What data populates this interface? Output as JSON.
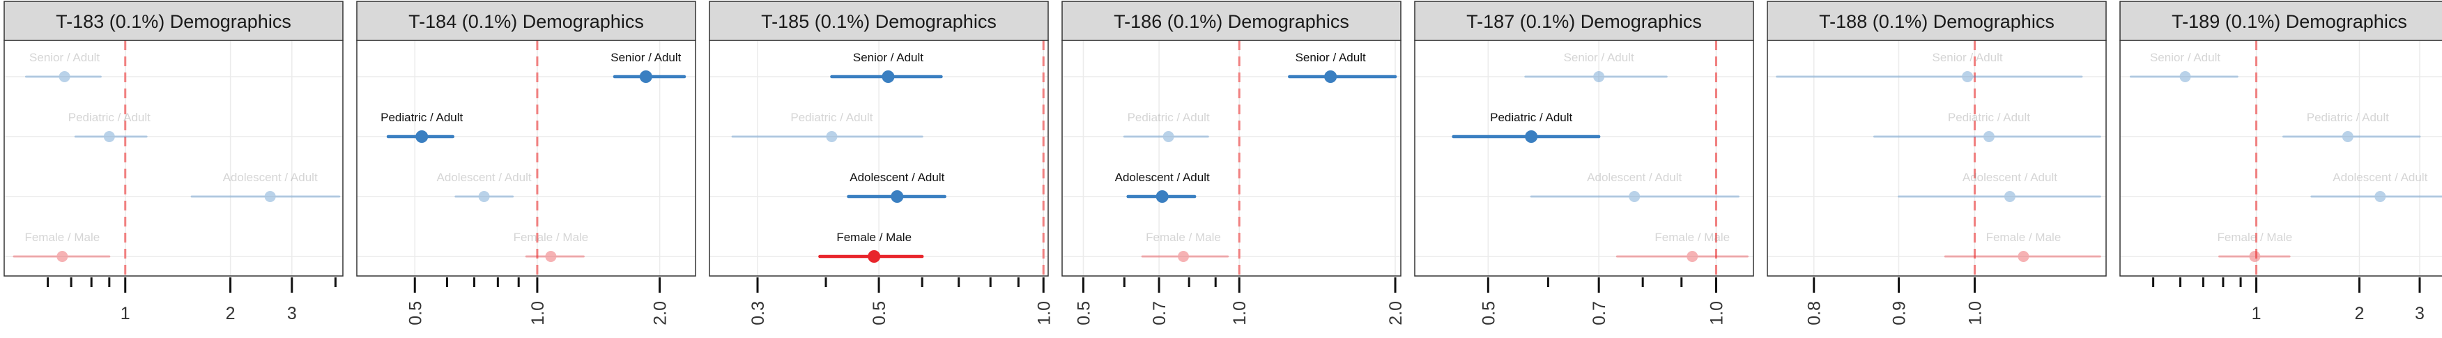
{
  "chart_data": [
    {
      "type": "forest",
      "title": "T-183 (0.1%) Demographics",
      "xscale": "log",
      "xlim": [
        0.45,
        4.2
      ],
      "tick_labels": [
        {
          "v": 1,
          "t": "1"
        },
        {
          "v": 2,
          "t": "2"
        },
        {
          "v": 3,
          "t": "3"
        }
      ],
      "minor_ticks": [
        0.6,
        0.7,
        0.8,
        0.9,
        4
      ],
      "label_rotation": 0,
      "ref": 1,
      "rows": [
        {
          "label": "Senior / Adult",
          "est": 0.67,
          "lo": 0.52,
          "hi": 0.85,
          "sig": false,
          "color": "#3a7fc1"
        },
        {
          "label": "Pediatric / Adult",
          "est": 0.9,
          "lo": 0.72,
          "hi": 1.15,
          "sig": false,
          "color": "#3a7fc1"
        },
        {
          "label": "Adolescent / Adult",
          "est": 2.6,
          "lo": 1.55,
          "hi": 4.1,
          "sig": false,
          "color": "#3a7fc1"
        },
        {
          "label": "Female / Male",
          "est": 0.66,
          "lo": 0.48,
          "hi": 0.9,
          "sig": false,
          "color": "#e8252b"
        }
      ]
    },
    {
      "type": "forest",
      "title": "T-184 (0.1%) Demographics",
      "xscale": "log",
      "xlim": [
        0.36,
        2.45
      ],
      "tick_labels": [
        {
          "v": 0.5,
          "t": "0.5"
        },
        {
          "v": 1,
          "t": "1.0"
        },
        {
          "v": 2,
          "t": "2.0"
        }
      ],
      "minor_ticks": [
        0.6,
        0.7,
        0.8,
        0.9
      ],
      "label_rotation": -90,
      "ref": 1,
      "rows": [
        {
          "label": "Senior / Adult",
          "est": 1.85,
          "lo": 1.55,
          "hi": 2.3,
          "sig": true,
          "color": "#3a7fc1"
        },
        {
          "label": "Pediatric / Adult",
          "est": 0.52,
          "lo": 0.43,
          "hi": 0.62,
          "sig": true,
          "color": "#3a7fc1"
        },
        {
          "label": "Adolescent / Adult",
          "est": 0.74,
          "lo": 0.63,
          "hi": 0.87,
          "sig": false,
          "color": "#3a7fc1"
        },
        {
          "label": "Female / Male",
          "est": 1.08,
          "lo": 0.94,
          "hi": 1.3,
          "sig": false,
          "color": "#e8252b"
        }
      ]
    },
    {
      "type": "forest",
      "title": "T-185 (0.1%) Demographics",
      "xscale": "log",
      "xlim": [
        0.245,
        1.02
      ],
      "tick_labels": [
        {
          "v": 0.3,
          "t": "0.3"
        },
        {
          "v": 0.5,
          "t": "0.5"
        },
        {
          "v": 1,
          "t": "1.0"
        }
      ],
      "minor_ticks": [
        0.4,
        0.6,
        0.7,
        0.8,
        0.9
      ],
      "label_rotation": -90,
      "ref": 1,
      "rows": [
        {
          "label": "Senior / Adult",
          "est": 0.52,
          "lo": 0.41,
          "hi": 0.65,
          "sig": true,
          "color": "#3a7fc1"
        },
        {
          "label": "Pediatric / Adult",
          "est": 0.41,
          "lo": 0.27,
          "hi": 0.6,
          "sig": false,
          "color": "#3a7fc1"
        },
        {
          "label": "Adolescent / Adult",
          "est": 0.54,
          "lo": 0.44,
          "hi": 0.66,
          "sig": true,
          "color": "#3a7fc1"
        },
        {
          "label": "Female / Male",
          "est": 0.49,
          "lo": 0.39,
          "hi": 0.6,
          "sig": true,
          "color": "#e8252b"
        }
      ]
    },
    {
      "type": "forest",
      "title": "T-186 (0.1%) Demographics",
      "xscale": "log",
      "xlim": [
        0.455,
        2.05
      ],
      "tick_labels": [
        {
          "v": 0.5,
          "t": "0.5"
        },
        {
          "v": 0.7,
          "t": "0.7"
        },
        {
          "v": 1,
          "t": "1.0"
        },
        {
          "v": 2,
          "t": "2.0"
        }
      ],
      "minor_ticks": [
        0.6,
        0.8,
        0.9
      ],
      "label_rotation": -90,
      "ref": 1,
      "rows": [
        {
          "label": "Senior / Adult",
          "est": 1.5,
          "lo": 1.25,
          "hi": 2.0,
          "sig": true,
          "color": "#3a7fc1"
        },
        {
          "label": "Pediatric / Adult",
          "est": 0.73,
          "lo": 0.6,
          "hi": 0.87,
          "sig": false,
          "color": "#3a7fc1"
        },
        {
          "label": "Adolescent / Adult",
          "est": 0.71,
          "lo": 0.61,
          "hi": 0.82,
          "sig": true,
          "color": "#3a7fc1"
        },
        {
          "label": "Female / Male",
          "est": 0.78,
          "lo": 0.65,
          "hi": 0.95,
          "sig": false,
          "color": "#e8252b"
        }
      ]
    },
    {
      "type": "forest",
      "title": "T-187 (0.1%) Demographics",
      "xscale": "log",
      "xlim": [
        0.4,
        1.12
      ],
      "tick_labels": [
        {
          "v": 0.5,
          "t": "0.5"
        },
        {
          "v": 0.7,
          "t": "0.7"
        },
        {
          "v": 1,
          "t": "1.0"
        }
      ],
      "minor_ticks": [
        0.6,
        0.8,
        0.9
      ],
      "label_rotation": -90,
      "ref": 1,
      "rows": [
        {
          "label": "Senior / Adult",
          "est": 0.7,
          "lo": 0.56,
          "hi": 0.86,
          "sig": false,
          "color": "#3a7fc1"
        },
        {
          "label": "Pediatric / Adult",
          "est": 0.57,
          "lo": 0.45,
          "hi": 0.7,
          "sig": true,
          "color": "#3a7fc1"
        },
        {
          "label": "Adolescent / Adult",
          "est": 0.78,
          "lo": 0.57,
          "hi": 1.07,
          "sig": false,
          "color": "#3a7fc1"
        },
        {
          "label": "Female / Male",
          "est": 0.93,
          "lo": 0.74,
          "hi": 1.1,
          "sig": false,
          "color": "#e8252b"
        }
      ]
    },
    {
      "type": "forest",
      "title": "T-188 (0.1%) Demographics",
      "xscale": "log",
      "xlim": [
        0.75,
        1.2
      ],
      "tick_labels": [
        {
          "v": 0.8,
          "t": "0.8"
        },
        {
          "v": 0.9,
          "t": "0.9"
        },
        {
          "v": 1,
          "t": "1.0"
        }
      ],
      "minor_ticks": [],
      "label_rotation": -90,
      "ref": 1,
      "rows": [
        {
          "label": "Senior / Adult",
          "est": 0.99,
          "lo": 0.76,
          "hi": 1.16,
          "sig": false,
          "color": "#3a7fc1"
        },
        {
          "label": "Pediatric / Adult",
          "est": 1.02,
          "lo": 0.87,
          "hi": 1.19,
          "sig": false,
          "color": "#3a7fc1"
        },
        {
          "label": "Adolescent / Adult",
          "est": 1.05,
          "lo": 0.9,
          "hi": 1.19,
          "sig": false,
          "color": "#3a7fc1"
        },
        {
          "label": "Female / Male",
          "est": 1.07,
          "lo": 0.96,
          "hi": 1.19,
          "sig": false,
          "color": "#e8252b"
        }
      ]
    },
    {
      "type": "forest",
      "title": "T-189 (0.1%) Demographics",
      "xscale": "log",
      "xlim": [
        0.4,
        3.9
      ],
      "tick_labels": [
        {
          "v": 1,
          "t": "1"
        },
        {
          "v": 2,
          "t": "2"
        },
        {
          "v": 3,
          "t": "3"
        }
      ],
      "minor_ticks": [
        0.5,
        0.6,
        0.7,
        0.8,
        0.9
      ],
      "label_rotation": 0,
      "ref": 1,
      "rows": [
        {
          "label": "Senior / Adult",
          "est": 0.62,
          "lo": 0.43,
          "hi": 0.88,
          "sig": false,
          "color": "#3a7fc1"
        },
        {
          "label": "Pediatric / Adult",
          "est": 1.85,
          "lo": 1.2,
          "hi": 3.0,
          "sig": false,
          "color": "#3a7fc1"
        },
        {
          "label": "Adolescent / Adult",
          "est": 2.3,
          "lo": 1.45,
          "hi": 3.8,
          "sig": false,
          "color": "#3a7fc1"
        },
        {
          "label": "Female / Male",
          "est": 0.99,
          "lo": 0.78,
          "hi": 1.25,
          "sig": false,
          "color": "#e8252b"
        }
      ]
    }
  ]
}
